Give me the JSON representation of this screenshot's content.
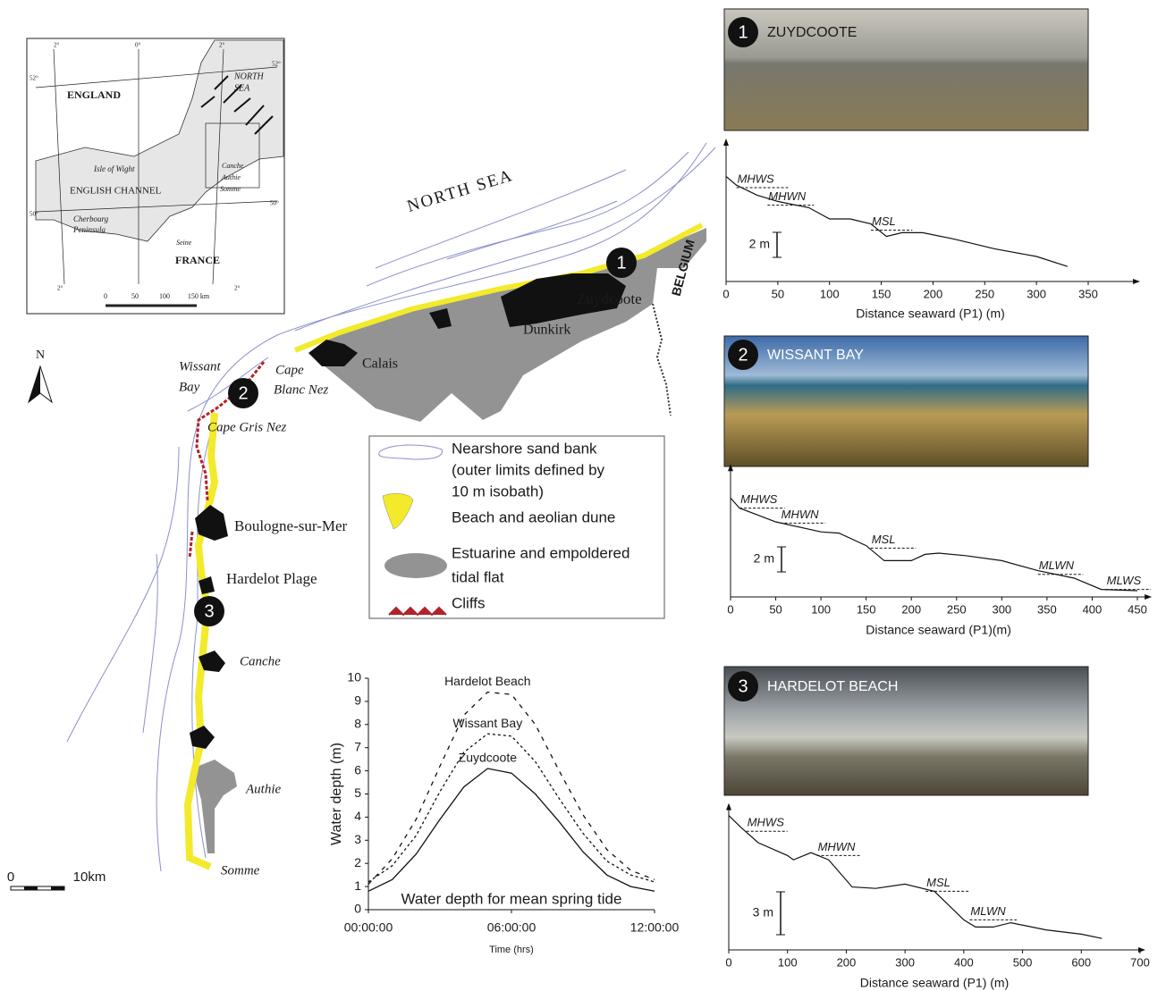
{
  "map": {
    "labels": [
      "NORTH SEA",
      "BELGIUM",
      "Zuydcoote",
      "Dunkirk",
      "Calais",
      [
        "Cape",
        "Blanc Nez"
      ],
      [
        "Wissant",
        "Bay"
      ],
      "Cape Gris Nez",
      "Boulogne-sur-Mer",
      "Hardelot Plage",
      "Canche",
      "Authie",
      "Somme"
    ],
    "sites": [
      "1",
      "2",
      "3"
    ],
    "north": "N",
    "scale": [
      "0",
      "10km"
    ],
    "legend": [
      [
        "Nearshore sand bank",
        "(outer limits defined by",
        "10 m isobath)"
      ],
      [
        "Beach and aeolian dune"
      ],
      [
        "Estuarine and empoldered",
        "tidal flat"
      ],
      [
        "Cliffs"
      ]
    ]
  },
  "inset": {
    "labels": [
      "ENGLAND",
      [
        "NORTH",
        "SEA"
      ],
      "ENGLISH CHANNEL",
      "Isle of Wight",
      [
        "Cherbourg",
        "Peninsula"
      ],
      "FRANCE",
      "Seine",
      "Canche",
      "Authie",
      "Somme"
    ],
    "graticule": [
      "2°",
      "0°",
      "2°",
      "52°",
      "52°",
      "50°",
      "50°",
      "2°",
      "2°"
    ],
    "scale": [
      "0",
      "50",
      "100",
      "150 km"
    ]
  },
  "photos": [
    {
      "number": "1",
      "title": "ZUYDCOOTE"
    },
    {
      "number": "2",
      "title": "WISSANT BAY"
    },
    {
      "number": "3",
      "title": "HARDELOT BEACH"
    }
  ],
  "chart_data": [
    {
      "type": "line",
      "xlabel": "Distance seaward (P1) (m)",
      "x": [
        0,
        10,
        30,
        50,
        80,
        100,
        120,
        140,
        155,
        170,
        190,
        220,
        260,
        300,
        330
      ],
      "values": [
        8.4,
        7.7,
        6.9,
        6.4,
        5.9,
        5.0,
        5.0,
        4.6,
        3.6,
        3.9,
        3.9,
        3.4,
        2.6,
        2.0,
        1.2
      ],
      "xlim": [
        0,
        395
      ],
      "xticks": [
        0,
        50,
        100,
        150,
        200,
        250,
        300,
        350
      ],
      "ylim": [
        0,
        11
      ],
      "scale_bar": {
        "value": 2,
        "label": "2 m"
      },
      "levels": [
        {
          "label": "MHWS",
          "value": 7.5,
          "x": [
            10,
            60
          ]
        },
        {
          "label": "MHWN",
          "value": 6.1,
          "x": [
            40,
            85
          ]
        },
        {
          "label": "MSL",
          "value": 4.1,
          "x": [
            140,
            180
          ]
        }
      ]
    },
    {
      "type": "line",
      "xlabel": "Distance seaward (P1)(m)",
      "x": [
        0,
        10,
        50,
        100,
        120,
        150,
        170,
        180,
        200,
        215,
        230,
        260,
        300,
        340,
        380,
        410,
        450
      ],
      "values": [
        7.9,
        7.1,
        6.0,
        5.2,
        5.1,
        4.1,
        2.9,
        2.9,
        2.9,
        3.4,
        3.5,
        3.3,
        2.9,
        2.1,
        1.5,
        0.6,
        0.5
      ],
      "xlim": [
        0,
        460
      ],
      "xticks": [
        0,
        50,
        100,
        150,
        200,
        250,
        300,
        350,
        400,
        450
      ],
      "ylim": [
        0,
        10.2
      ],
      "scale_bar": {
        "value": 2,
        "label": "2 m"
      },
      "levels": [
        {
          "label": "MHWS",
          "value": 7.1,
          "x": [
            10,
            60
          ]
        },
        {
          "label": "MHWN",
          "value": 5.9,
          "x": [
            55,
            105
          ]
        },
        {
          "label": "MSL",
          "value": 3.9,
          "x": [
            155,
            205
          ]
        },
        {
          "label": "MLWN",
          "value": 1.8,
          "x": [
            340,
            390
          ]
        },
        {
          "label": "MLWS",
          "value": 0.6,
          "x": [
            415,
            465
          ]
        }
      ]
    },
    {
      "type": "line",
      "xlabel": "Distance seaward (P1) (m)",
      "x": [
        0,
        20,
        50,
        100,
        110,
        140,
        170,
        210,
        250,
        300,
        350,
        400,
        420,
        450,
        480,
        540,
        600,
        635
      ],
      "values": [
        9.4,
        8.6,
        7.5,
        6.6,
        6.3,
        6.8,
        6.3,
        4.4,
        4.3,
        4.6,
        4.1,
        2.1,
        1.6,
        1.6,
        1.9,
        1.4,
        1.1,
        0.8
      ],
      "xlim": [
        0,
        700
      ],
      "xticks": [
        0,
        100,
        200,
        300,
        400,
        500,
        600,
        700
      ],
      "ylim": [
        0,
        9.9
      ],
      "scale_bar": {
        "value": 3,
        "label": "3 m"
      },
      "levels": [
        {
          "label": "MHWS",
          "value": 8.3,
          "x": [
            30,
            100
          ]
        },
        {
          "label": "MHWN",
          "value": 6.6,
          "x": [
            150,
            225
          ]
        },
        {
          "label": "MSL",
          "value": 4.1,
          "x": [
            335,
            410
          ]
        },
        {
          "label": "MLWN",
          "value": 2.1,
          "x": [
            410,
            490
          ]
        }
      ]
    },
    {
      "type": "tide",
      "xlabel": "Time (hrs)",
      "ylabel": "Water depth (m)",
      "annotation": "Water depth for mean spring tide",
      "x": [
        0,
        1,
        2,
        3,
        4,
        5,
        6,
        7,
        8,
        9,
        10,
        11,
        12
      ],
      "xlim": [
        0,
        12
      ],
      "xticks": [
        {
          "value": 0,
          "label": "00:00:00"
        },
        {
          "value": 6,
          "label": "06:00:00"
        },
        {
          "value": 12,
          "label": "12:00:00"
        }
      ],
      "ylim": [
        0,
        10
      ],
      "yticks": [
        0,
        1,
        2,
        3,
        4,
        5,
        6,
        7,
        8,
        9,
        10
      ],
      "series": [
        {
          "name": "Hardelot Beach",
          "color": "#111111",
          "dash": "5 6",
          "values": [
            1.1,
            2.2,
            3.9,
            6.2,
            8.4,
            9.4,
            9.3,
            8.0,
            6.0,
            4.1,
            2.6,
            1.7,
            1.3
          ]
        },
        {
          "name": "Wissant Bay",
          "color": "#111111",
          "dash": "3 3",
          "values": [
            1.2,
            1.9,
            3.2,
            5.1,
            6.8,
            7.6,
            7.5,
            6.4,
            4.8,
            3.3,
            2.1,
            1.5,
            1.2
          ]
        },
        {
          "name": "Zuydcoote",
          "color": "#111111",
          "dash": "none",
          "values": [
            0.8,
            1.3,
            2.4,
            3.9,
            5.3,
            6.1,
            5.9,
            5.0,
            3.8,
            2.5,
            1.5,
            1.0,
            0.8
          ]
        }
      ]
    }
  ]
}
